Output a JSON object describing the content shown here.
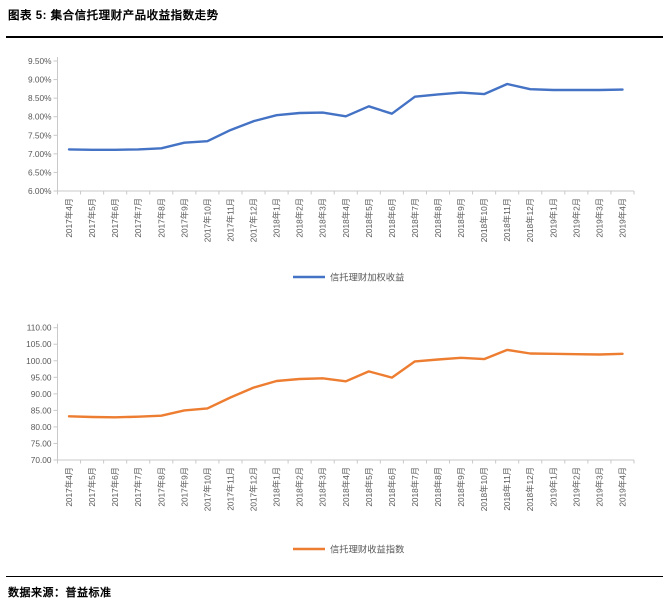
{
  "header": {
    "title": "图表 5: 集合信托理财产品收益指数走势"
  },
  "footer": {
    "source_label": "数据来源：普益标准"
  },
  "colors": {
    "axis_line": "#c9c9c9",
    "axis_text": "#595959",
    "legend_text": "#595959",
    "rule": "#000000"
  },
  "chart_data": [
    {
      "type": "line",
      "title": "",
      "xlabel": "",
      "ylabel": "",
      "grid": false,
      "legend_position": "bottom",
      "ylim": [
        6.0,
        9.5
      ],
      "ytick_step": 0.5,
      "ytick_format": "percent2",
      "categories": [
        "2017年4月",
        "2017年5月",
        "2017年6月",
        "2017年7月",
        "2017年8月",
        "2017年9月",
        "2017年10月",
        "2017年11月",
        "2017年12月",
        "2018年1月",
        "2018年2月",
        "2018年3月",
        "2018年4月",
        "2018年5月",
        "2018年6月",
        "2018年7月",
        "2018年8月",
        "2018年9月",
        "2018年10月",
        "2018年11月",
        "2018年12月",
        "2019年1月",
        "2019年2月",
        "2019年3月",
        "2019年4月"
      ],
      "series": [
        {
          "name": "信托理财加权收益",
          "color": "#4472c4",
          "values": [
            7.12,
            7.11,
            7.11,
            7.12,
            7.15,
            7.3,
            7.34,
            7.64,
            7.88,
            8.04,
            8.1,
            8.11,
            8.01,
            8.28,
            8.08,
            8.54,
            8.6,
            8.65,
            8.61,
            8.88,
            8.74,
            8.72,
            8.72,
            8.72,
            8.73
          ]
        }
      ]
    },
    {
      "type": "line",
      "title": "",
      "xlabel": "",
      "ylabel": "",
      "grid": false,
      "legend_position": "bottom",
      "ylim": [
        70.0,
        110.0
      ],
      "ytick_step": 5.0,
      "ytick_format": "fixed2",
      "categories": [
        "2017年4月",
        "2017年5月",
        "2017年6月",
        "2017年7月",
        "2017年8月",
        "2017年9月",
        "2017年10月",
        "2017年11月",
        "2017年12月",
        "2018年1月",
        "2018年2月",
        "2018年3月",
        "2018年4月",
        "2018年5月",
        "2018年6月",
        "2018年7月",
        "2018年8月",
        "2018年9月",
        "2018年10月",
        "2018年11月",
        "2018年12月",
        "2019年1月",
        "2019年2月",
        "2019年3月",
        "2019年4月"
      ],
      "series": [
        {
          "name": "信托理财收益指数",
          "color": "#ed7d31",
          "values": [
            83.2,
            83.0,
            82.9,
            83.1,
            83.4,
            85.0,
            85.6,
            88.9,
            91.9,
            93.9,
            94.5,
            94.7,
            93.8,
            96.8,
            94.9,
            99.8,
            100.4,
            100.9,
            100.5,
            103.3,
            102.2,
            102.1,
            102.0,
            101.9,
            102.1
          ]
        }
      ]
    }
  ]
}
